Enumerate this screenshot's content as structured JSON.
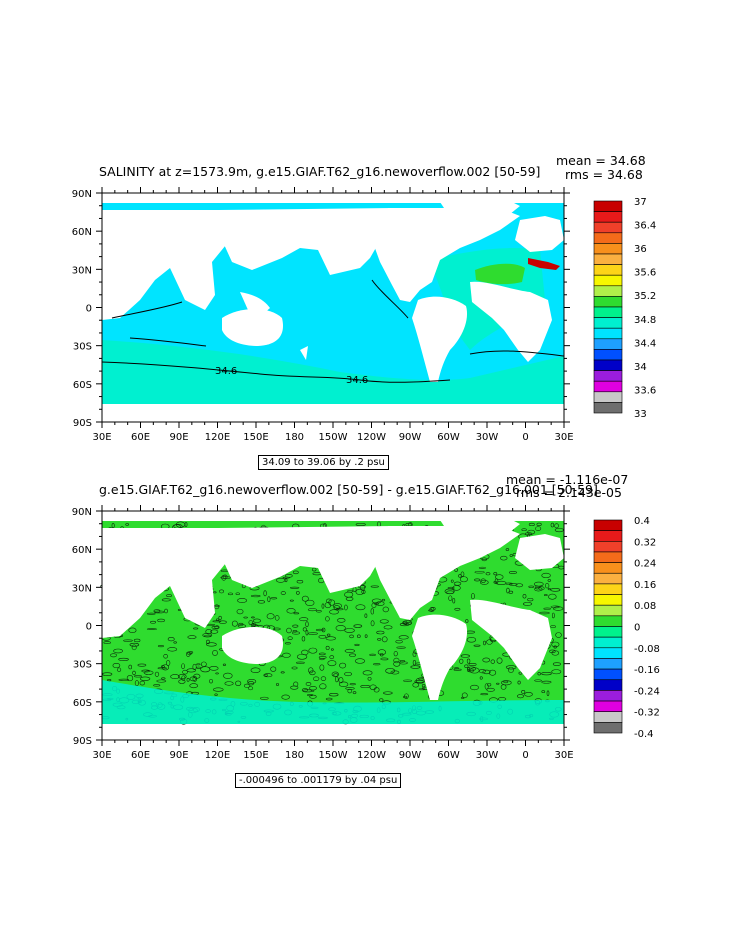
{
  "panel1": {
    "title": "SALINITY at z=1573.9m, g.e15.GIAF.T62_g16.newoverflow.002  [50-59]",
    "mean": "mean = 34.68",
    "rms": "rms = 34.68",
    "range": "34.09 to 39.06 by .2 psu",
    "contour_labels": [
      "34.6",
      "34.6"
    ],
    "colorbar": {
      "labels": [
        "37",
        "36.4",
        "36",
        "35.6",
        "35.2",
        "34.8",
        "34.4",
        "34",
        "33.6",
        "33"
      ],
      "colors": [
        "#c80000",
        "#e81a1a",
        "#f0402a",
        "#f46b1a",
        "#f8901c",
        "#fbb040",
        "#fdd418",
        "#f7f700",
        "#b0f04a",
        "#2fdc2f",
        "#00f28c",
        "#00f0d0",
        "#00e4ff",
        "#1ea0ff",
        "#0050ff",
        "#0000c8",
        "#9b1ddd",
        "#e000e0",
        "#c8c8c8",
        "#6e6e6e"
      ]
    }
  },
  "panel2": {
    "title": "g.e15.GIAF.T62_g16.newoverflow.002  [50-59]  -  g.e15.GIAF.T62_g16.001  [50-59]",
    "mean": "mean = -1.116e-07",
    "rms": "rms = 2.143e-05",
    "range": "-.000496 to .001179 by .04 psu",
    "colorbar": {
      "labels": [
        "0.4",
        "0.32",
        "0.24",
        "0.16",
        "0.08",
        "0",
        "-0.08",
        "-0.16",
        "-0.24",
        "-0.32",
        "-0.4"
      ],
      "colors": [
        "#c80000",
        "#e81a1a",
        "#f0402a",
        "#f46b1a",
        "#f8901c",
        "#fbb040",
        "#fdd418",
        "#f7f700",
        "#b0f04a",
        "#2fdc2f",
        "#00f28c",
        "#00f0d0",
        "#00e4ff",
        "#1ea0ff",
        "#0050ff",
        "#0000c8",
        "#9b1ddd",
        "#e000e0",
        "#c8c8c8",
        "#6e6e6e"
      ]
    }
  },
  "axes": {
    "lat_labels": [
      "90N",
      "60N",
      "30N",
      "0",
      "30S",
      "60S",
      "90S"
    ],
    "lon_labels": [
      "30E",
      "60E",
      "90E",
      "120E",
      "150E",
      "180",
      "150W",
      "120W",
      "90W",
      "60W",
      "30W",
      "0",
      "30E"
    ]
  },
  "colors": {
    "ocean_base_1": "#00e4ff",
    "ocean_low_1": "#00f0d0",
    "ocean_high_1": "#2fdc2f",
    "ocean_base_2": "#2fdc2f",
    "ocean_alt_2": "#00f0d0",
    "contour": "#000000"
  }
}
